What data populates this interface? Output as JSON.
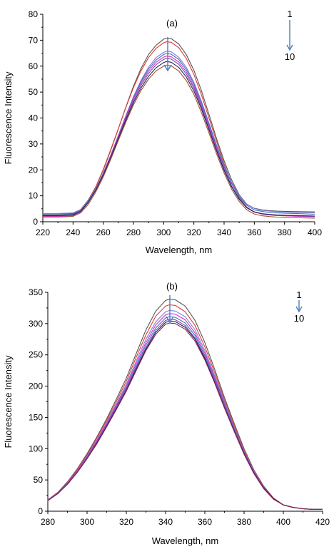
{
  "chart_data": [
    {
      "type": "line",
      "panel_label": "(a)",
      "xlabel": "Wavelength, nm",
      "ylabel": "Fluorescence Intensity",
      "xlim": [
        220,
        400
      ],
      "ylim": [
        0,
        80
      ],
      "xticks": [
        220,
        240,
        260,
        280,
        300,
        320,
        340,
        360,
        380,
        400
      ],
      "yticks": [
        0,
        10,
        20,
        30,
        40,
        50,
        60,
        70,
        80
      ],
      "grid": false,
      "legend_markers": {
        "start": "1",
        "end": "10"
      },
      "arrow_color": "#4a7ebb",
      "x": [
        220,
        230,
        240,
        245,
        250,
        255,
        260,
        265,
        270,
        275,
        280,
        285,
        290,
        295,
        300,
        302,
        305,
        310,
        315,
        320,
        325,
        330,
        335,
        340,
        345,
        350,
        355,
        360,
        365,
        370,
        375,
        380,
        390,
        400
      ],
      "series": [
        {
          "color": "#555555",
          "values": [
            3.0,
            3.0,
            3.2,
            4.7,
            8.3,
            13.4,
            19.9,
            27.6,
            35.8,
            44.3,
            52.3,
            59.1,
            64.5,
            68.1,
            70.4,
            70.8,
            70.6,
            68.5,
            64.4,
            58.4,
            50.5,
            41.4,
            32.1,
            23.5,
            16.1,
            10.4,
            6.8,
            5.2,
            4.6,
            4.3,
            4.1,
            4.0,
            3.9,
            3.8
          ]
        },
        {
          "color": "#e03c31",
          "values": [
            2.2,
            2.2,
            2.5,
            4.2,
            8.0,
            13.4,
            20.2,
            27.9,
            35.9,
            44.1,
            51.7,
            58.2,
            63.3,
            66.9,
            69.0,
            69.4,
            69.2,
            67.1,
            62.9,
            56.8,
            48.9,
            40.0,
            31.0,
            22.4,
            14.9,
            9.3,
            5.6,
            3.8,
            3.0,
            2.6,
            2.4,
            2.3,
            2.1,
            2.0
          ]
        },
        {
          "color": "#7f7fd5",
          "values": [
            3.2,
            3.2,
            3.4,
            4.7,
            8.0,
            12.7,
            18.8,
            25.8,
            33.3,
            40.9,
            48.2,
            54.5,
            59.6,
            63.3,
            65.3,
            65.8,
            65.5,
            63.4,
            59.5,
            53.8,
            46.4,
            38.1,
            29.6,
            21.8,
            15.2,
            10.1,
            6.7,
            5.1,
            4.4,
            4.1,
            3.9,
            3.7,
            3.5,
            3.4
          ]
        },
        {
          "color": "#3f6fbf",
          "values": [
            2.6,
            2.6,
            2.9,
            4.3,
            7.7,
            12.5,
            18.6,
            25.6,
            33.1,
            40.8,
            48.0,
            54.1,
            58.9,
            62.4,
            64.5,
            64.9,
            64.6,
            62.6,
            58.7,
            53.1,
            45.8,
            37.5,
            29.1,
            21.3,
            14.7,
            9.6,
            6.3,
            4.6,
            4.0,
            3.6,
            3.4,
            3.3,
            3.1,
            2.9
          ]
        },
        {
          "color": "#cc33cc",
          "values": [
            2.0,
            2.0,
            2.3,
            3.7,
            7.3,
            12.2,
            18.4,
            25.5,
            33.0,
            40.5,
            47.5,
            53.4,
            58.1,
            61.5,
            63.5,
            63.9,
            63.6,
            61.6,
            57.8,
            52.2,
            44.9,
            36.7,
            28.3,
            20.5,
            13.8,
            8.8,
            5.4,
            3.7,
            3.0,
            2.6,
            2.4,
            2.3,
            2.1,
            2.0
          ]
        },
        {
          "color": "#7a4a9e",
          "values": [
            2.3,
            2.3,
            2.6,
            4.0,
            7.4,
            12.2,
            18.2,
            25.2,
            32.5,
            39.8,
            46.7,
            52.6,
            57.2,
            60.6,
            62.6,
            63.0,
            62.7,
            60.7,
            56.9,
            51.4,
            44.2,
            36.0,
            27.8,
            20.2,
            13.6,
            8.8,
            5.5,
            3.8,
            3.1,
            2.8,
            2.6,
            2.5,
            2.3,
            2.2
          ]
        },
        {
          "color": "#222266",
          "values": [
            2.4,
            2.4,
            2.7,
            4.1,
            7.4,
            12.1,
            18.0,
            24.8,
            32.0,
            39.2,
            45.9,
            51.6,
            56.1,
            59.4,
            61.4,
            61.8,
            61.5,
            59.5,
            55.8,
            50.4,
            43.4,
            35.4,
            27.3,
            19.8,
            13.4,
            8.6,
            5.4,
            3.8,
            3.1,
            2.8,
            2.6,
            2.5,
            2.3,
            2.2
          ]
        },
        {
          "color": "#a0522d",
          "values": [
            1.8,
            1.8,
            2.1,
            3.4,
            6.6,
            11.4,
            17.3,
            24.1,
            31.3,
            38.4,
            45.0,
            50.6,
            55.0,
            58.2,
            60.0,
            60.4,
            60.1,
            58.1,
            54.4,
            49.1,
            42.1,
            34.2,
            26.2,
            18.8,
            12.5,
            7.8,
            4.6,
            3.0,
            2.3,
            2.0,
            1.8,
            1.7,
            1.5,
            1.4
          ]
        }
      ]
    },
    {
      "type": "line",
      "panel_label": "(b)",
      "xlabel": "Wavelength, nm",
      "ylabel": "Fluorescence Intensity",
      "xlim": [
        280,
        420
      ],
      "ylim": [
        0,
        350
      ],
      "xticks": [
        280,
        300,
        320,
        340,
        360,
        380,
        400,
        420
      ],
      "yticks": [
        0,
        50,
        100,
        150,
        200,
        250,
        300,
        350
      ],
      "grid": false,
      "legend_markers": {
        "start": "1",
        "end": "10"
      },
      "arrow_color": "#4a7ebb",
      "x": [
        280,
        285,
        290,
        295,
        300,
        305,
        310,
        315,
        320,
        325,
        330,
        335,
        340,
        342,
        345,
        350,
        355,
        360,
        365,
        370,
        375,
        380,
        385,
        390,
        395,
        400,
        405,
        410,
        415,
        420
      ],
      "series": [
        {
          "color": "#555555",
          "values": [
            18,
            30,
            47,
            68,
            92,
            119,
            148,
            180,
            213,
            252,
            290,
            320,
            337,
            339,
            338,
            328,
            305,
            270,
            227,
            182,
            140,
            100,
            66,
            40,
            21,
            10,
            6,
            4,
            3,
            3
          ]
        },
        {
          "color": "#e03c31",
          "values": [
            18,
            30,
            46,
            67,
            90,
            117,
            145,
            176,
            208,
            246,
            282,
            312,
            328,
            330,
            329,
            319,
            297,
            263,
            222,
            178,
            137,
            98,
            65,
            39,
            21,
            10,
            6,
            4,
            3,
            3
          ]
        },
        {
          "color": "#7f7fd5",
          "values": [
            18,
            29,
            45,
            65,
            88,
            114,
            142,
            172,
            203,
            240,
            275,
            303,
            319,
            321,
            320,
            311,
            290,
            257,
            217,
            175,
            134,
            96,
            64,
            38,
            20,
            10,
            6,
            4,
            3,
            3
          ]
        },
        {
          "color": "#cc33cc",
          "values": [
            18,
            29,
            45,
            65,
            87,
            113,
            140,
            170,
            200,
            236,
            270,
            298,
            314,
            316,
            315,
            306,
            285,
            253,
            214,
            172,
            132,
            95,
            63,
            38,
            20,
            10,
            6,
            4,
            3,
            3
          ]
        },
        {
          "color": "#3f6fbf",
          "values": [
            17,
            29,
            44,
            64,
            86,
            111,
            138,
            168,
            197,
            232,
            266,
            293,
            309,
            311,
            310,
            301,
            281,
            249,
            211,
            170,
            131,
            94,
            62,
            37,
            20,
            10,
            6,
            4,
            3,
            3
          ]
        },
        {
          "color": "#7a4a9e",
          "values": [
            17,
            28,
            44,
            63,
            85,
            110,
            137,
            166,
            195,
            229,
            262,
            289,
            305,
            307,
            306,
            297,
            277,
            246,
            208,
            168,
            129,
            93,
            61,
            37,
            20,
            10,
            6,
            4,
            3,
            3
          ]
        },
        {
          "color": "#222266",
          "values": [
            17,
            28,
            43,
            62,
            84,
            109,
            136,
            164,
            193,
            227,
            259,
            286,
            302,
            304,
            303,
            294,
            275,
            244,
            206,
            166,
            128,
            92,
            61,
            37,
            20,
            10,
            6,
            4,
            3,
            3
          ]
        },
        {
          "color": "#8b2252",
          "values": [
            17,
            28,
            43,
            62,
            84,
            108,
            135,
            163,
            192,
            225,
            257,
            283,
            299,
            301,
            300,
            291,
            272,
            242,
            205,
            165,
            127,
            91,
            60,
            36,
            19,
            10,
            6,
            4,
            3,
            3
          ]
        }
      ]
    }
  ]
}
